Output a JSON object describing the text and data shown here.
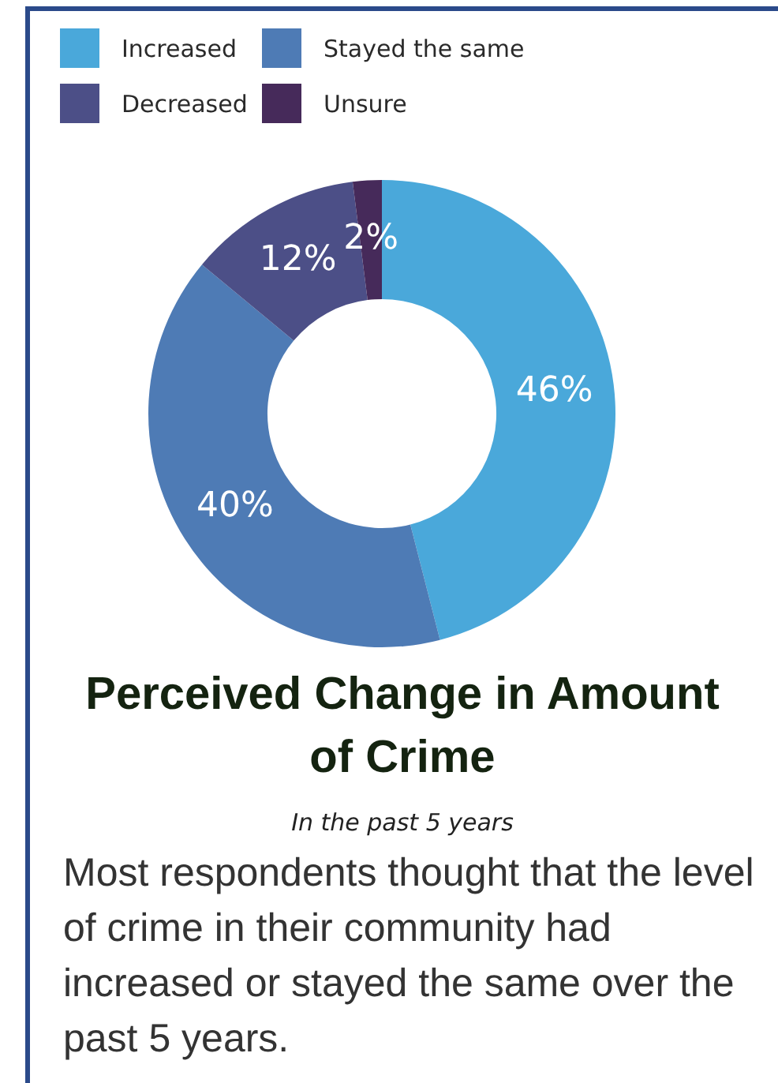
{
  "chart_data": {
    "type": "donut",
    "title": "Perceived Change in Amount of Crime",
    "subtitle": "In the past 5 years",
    "annotations": [
      "Most respondents thought that the level of crime in their community had increased or stayed the same over the past 5 years."
    ],
    "categories": [
      "Increased",
      "Stayed the same",
      "Decreased",
      "Unsure"
    ],
    "values": [
      46,
      40,
      12,
      2
    ],
    "value_labels": [
      "46%",
      "40%",
      "12%",
      "2%"
    ],
    "colors": [
      "#4aa8da",
      "#4e7bb5",
      "#4c4f87",
      "#462a5a"
    ],
    "legend": "top left"
  }
}
